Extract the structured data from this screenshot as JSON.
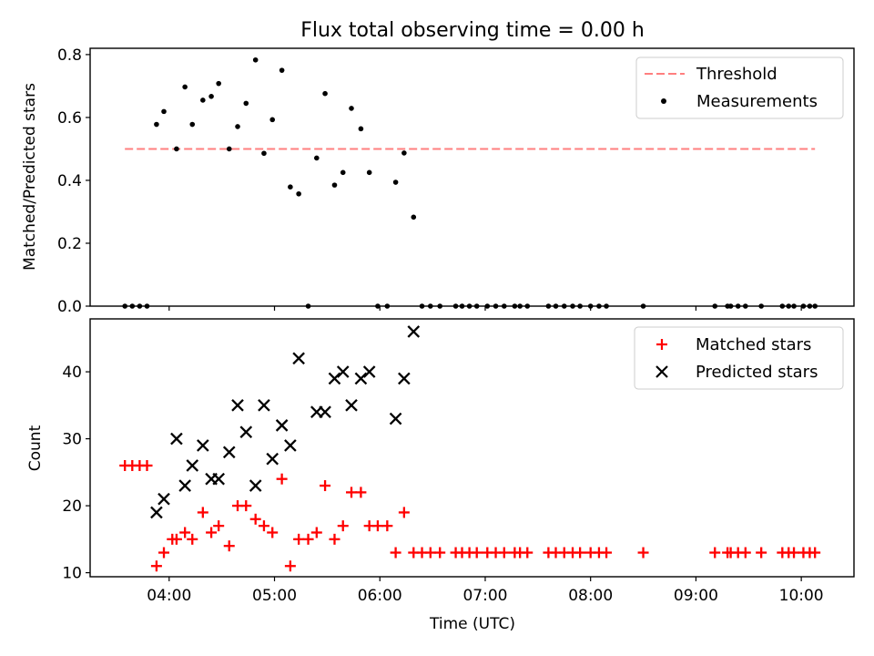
{
  "title": "Flux total observing time = 0.00 h",
  "chart_data": [
    {
      "type": "scatter",
      "name": "ratio-panel",
      "ylabel": "Matched/Predicted stars",
      "xlim": [
        3.25,
        10.5
      ],
      "ylim": [
        0,
        0.82
      ],
      "yticks": [
        0.0,
        0.2,
        0.4,
        0.6,
        0.8
      ],
      "ytick_labels": [
        "0.0",
        "0.2",
        "0.4",
        "0.6",
        "0.8"
      ],
      "threshold": {
        "name": "Threshold",
        "value": 0.5,
        "x_range": [
          3.58,
          10.13
        ],
        "color": "#ff7f7f"
      },
      "series": [
        {
          "name": "Measurements",
          "color": "#000000",
          "marker": "dot",
          "x": [
            3.58,
            3.65,
            3.72,
            3.79,
            3.88,
            3.95,
            4.07,
            4.15,
            4.22,
            4.32,
            4.4,
            4.47,
            4.57,
            4.65,
            4.73,
            4.82,
            4.9,
            4.98,
            5.07,
            5.15,
            5.23,
            5.32,
            5.4,
            5.48,
            5.57,
            5.65,
            5.73,
            5.82,
            5.9,
            5.98,
            6.07,
            6.15,
            6.23,
            6.32,
            6.4,
            6.48,
            6.57,
            6.72,
            6.78,
            6.85,
            6.92,
            7.02,
            7.1,
            7.18,
            7.28,
            7.33,
            7.4,
            7.6,
            7.67,
            7.75,
            7.83,
            7.9,
            8.0,
            8.08,
            8.15,
            8.5,
            9.18,
            9.3,
            9.33,
            9.4,
            9.47,
            9.62,
            9.82,
            9.88,
            9.93,
            10.02,
            10.08,
            10.13
          ],
          "y": [
            0,
            0,
            0,
            0,
            0.578,
            0.619,
            0.5,
            0.697,
            0.578,
            0.655,
            0.667,
            0.708,
            0.5,
            0.571,
            0.645,
            0.783,
            0.486,
            0.593,
            0.75,
            0.379,
            0.357,
            0,
            0.471,
            0.676,
            0.385,
            0.425,
            0.629,
            0.564,
            0.425,
            0,
            0,
            0.394,
            0.487,
            0.283,
            0,
            0,
            0,
            0,
            0,
            0,
            0,
            0,
            0,
            0,
            0,
            0,
            0,
            0,
            0,
            0,
            0,
            0,
            0,
            0,
            0,
            0,
            0,
            0,
            0,
            0,
            0,
            0,
            0,
            0,
            0,
            0,
            0,
            0
          ]
        }
      ]
    },
    {
      "type": "scatter",
      "name": "count-panel",
      "xlabel": "Time (UTC)",
      "ylabel": "Count",
      "xlim": [
        3.25,
        10.5
      ],
      "ylim": [
        9.4,
        47.9
      ],
      "xticks": [
        4,
        5,
        6,
        7,
        8,
        9,
        10
      ],
      "xtick_labels": [
        "04:00",
        "05:00",
        "06:00",
        "07:00",
        "08:00",
        "09:00",
        "10:00"
      ],
      "yticks": [
        10,
        20,
        30,
        40
      ],
      "ytick_labels": [
        "10",
        "20",
        "30",
        "40"
      ],
      "series": [
        {
          "name": "Matched stars",
          "color": "#ff0000",
          "marker": "plus",
          "x": [
            3.58,
            3.65,
            3.72,
            3.79,
            3.88,
            3.95,
            4.03,
            4.07,
            4.15,
            4.22,
            4.32,
            4.4,
            4.47,
            4.57,
            4.65,
            4.73,
            4.82,
            4.9,
            4.98,
            5.07,
            5.15,
            5.23,
            5.32,
            5.4,
            5.48,
            5.57,
            5.65,
            5.73,
            5.82,
            5.9,
            5.98,
            6.07,
            6.15,
            6.23,
            6.32,
            6.4,
            6.48,
            6.57,
            6.72,
            6.78,
            6.85,
            6.92,
            7.02,
            7.1,
            7.18,
            7.28,
            7.33,
            7.4,
            7.6,
            7.67,
            7.75,
            7.83,
            7.9,
            8.0,
            8.08,
            8.15,
            8.5,
            9.18,
            9.3,
            9.33,
            9.4,
            9.47,
            9.62,
            9.82,
            9.88,
            9.93,
            10.02,
            10.08,
            10.13
          ],
          "y": [
            26,
            26,
            26,
            26,
            11,
            13,
            15,
            15,
            16,
            15,
            19,
            16,
            17,
            14,
            20,
            20,
            18,
            17,
            16,
            24,
            11,
            15,
            15,
            16,
            23,
            15,
            17,
            22,
            22,
            17,
            17,
            17,
            13,
            19,
            13,
            13,
            13,
            13,
            13,
            13,
            13,
            13,
            13,
            13,
            13,
            13,
            13,
            13,
            13,
            13,
            13,
            13,
            13,
            13,
            13,
            13,
            13,
            13,
            13,
            13,
            13,
            13,
            13,
            13,
            13,
            13,
            13,
            13,
            13
          ]
        },
        {
          "name": "Predicted stars",
          "color": "#000000",
          "marker": "x",
          "x": [
            3.88,
            3.95,
            4.07,
            4.15,
            4.22,
            4.32,
            4.4,
            4.47,
            4.57,
            4.65,
            4.73,
            4.82,
            4.9,
            4.98,
            5.07,
            5.15,
            5.23,
            5.4,
            5.48,
            5.57,
            5.65,
            5.73,
            5.82,
            5.9,
            6.15,
            6.23,
            6.32
          ],
          "y": [
            19,
            21,
            30,
            23,
            26,
            29,
            24,
            24,
            28,
            35,
            31,
            23,
            35,
            27,
            32,
            29,
            42,
            34,
            34,
            39,
            40,
            35,
            39,
            40,
            33,
            39,
            46
          ]
        }
      ]
    }
  ]
}
